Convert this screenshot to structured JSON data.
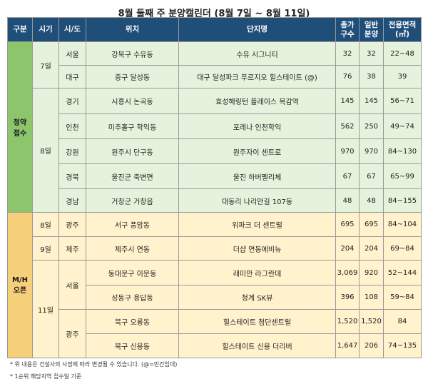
{
  "title": "8월 둘째 주 분양캘린더 (8월 7일 ~ 8월 11일)",
  "header": {
    "category": "구분",
    "timing": "시기",
    "region": "시/도",
    "location": "위치",
    "complex": "단지명",
    "total_units_1": "총가",
    "total_units_2": "구수",
    "general_units_1": "일반",
    "general_units_2": "분양",
    "area": "전용면적",
    "area_unit": "(㎡)"
  },
  "categories": {
    "subscription": "청약\n접수",
    "mh_open": "M/H\n오픈"
  },
  "timings": {
    "d7": "7일",
    "d8_sub": "8일",
    "d8_mh": "8일",
    "d9": "9일",
    "d11": "11일"
  },
  "regions": {
    "seoul": "서울",
    "daegu": "대구",
    "gyeonggi": "경기",
    "incheon": "인천",
    "gangwon": "강원",
    "gyeongbuk": "경북",
    "gyeongnam": "경남",
    "gwangju_8": "광주",
    "jeju": "제주",
    "seoul_11": "서울",
    "gwangju_11": "광주"
  },
  "rows": [
    {
      "location": "강북구 수유동",
      "complex": "수유 시그니티",
      "total": "32",
      "general": "32",
      "area": "22~48"
    },
    {
      "location": "중구 달성동",
      "complex": "대구 달성파크 푸르지오 힐스테이트 (@)",
      "total": "76",
      "general": "38",
      "area": "39"
    },
    {
      "location": "시흥시 논곡동",
      "complex": "효성해링턴 플레이스 목감역",
      "total": "145",
      "general": "145",
      "area": "56~71"
    },
    {
      "location": "미추홀구 학익동",
      "complex": "포레나 인천학익",
      "total": "562",
      "general": "250",
      "area": "49~74"
    },
    {
      "location": "원주시 단구동",
      "complex": "원주자이 센트로",
      "total": "970",
      "general": "970",
      "area": "84~130"
    },
    {
      "location": "울진군 죽변면",
      "complex": "울진 하버펠리체",
      "total": "67",
      "general": "67",
      "area": "65~99"
    },
    {
      "location": "거창군 거창읍",
      "complex": "대동리 나리안길 107동",
      "total": "48",
      "general": "48",
      "area": "84~155"
    },
    {
      "location": "서구 풍암동",
      "complex": "위파크 더 센트럴",
      "total": "695",
      "general": "695",
      "area": "84~104"
    },
    {
      "location": "제주시 연동",
      "complex": "더샵 연동에비뉴",
      "total": "204",
      "general": "204",
      "area": "69~84"
    },
    {
      "location": "동대문구 이문동",
      "complex": "래미안 라그란데",
      "total": "3,069",
      "general": "920",
      "area": "52~144"
    },
    {
      "location": "성동구 용답동",
      "complex": "청계 SK뷰",
      "total": "396",
      "general": "108",
      "area": "59~84"
    },
    {
      "location": "북구 오룡동",
      "complex": "힐스테이트 첨단센트럴",
      "total": "1,520",
      "general": "1,520",
      "area": "84"
    },
    {
      "location": "북구 신용동",
      "complex": "힐스테이트 신용 더리버",
      "total": "1,647",
      "general": "206",
      "area": "74~135"
    }
  ],
  "notes": [
    "* 위 내용은 건설사의 사정에 따라 변경될 수 있습니다. (@=민간임대)",
    "* 1순위 해당지역 접수일 기준"
  ]
}
